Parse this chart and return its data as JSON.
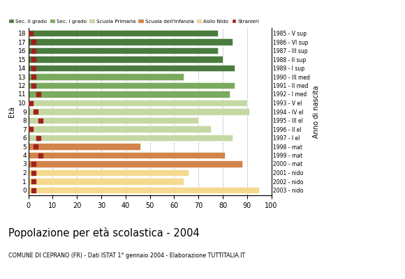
{
  "ages": [
    18,
    17,
    16,
    15,
    14,
    13,
    12,
    11,
    10,
    9,
    8,
    7,
    6,
    5,
    4,
    3,
    2,
    1,
    0
  ],
  "bar_values": [
    78,
    84,
    78,
    80,
    85,
    64,
    85,
    83,
    90,
    91,
    70,
    75,
    84,
    46,
    81,
    88,
    66,
    64,
    95
  ],
  "bar_colors": [
    "#4a7c3f",
    "#4a7c3f",
    "#4a7c3f",
    "#4a7c3f",
    "#4a7c3f",
    "#7aaa5e",
    "#7aaa5e",
    "#7aaa5e",
    "#c5d8a4",
    "#c5d8a4",
    "#c5d8a4",
    "#c5d8a4",
    "#c5d8a4",
    "#d2844a",
    "#d2844a",
    "#d2844a",
    "#f5d98e",
    "#f5d98e",
    "#f5d98e"
  ],
  "stranieri_values": [
    1,
    2,
    2,
    2,
    2,
    2,
    2,
    4,
    1,
    3,
    5,
    1,
    4,
    3,
    5,
    2,
    2,
    2,
    2
  ],
  "right_labels": [
    "1985 - V sup",
    "1986 - VI sup",
    "1987 - III sup",
    "1988 - II sup",
    "1989 - I sup",
    "1990 - III med",
    "1991 - II med",
    "1992 - I med",
    "1993 - V el",
    "1994 - IV el",
    "1995 - III el",
    "1996 - II el",
    "1997 - I el",
    "1998 - mat",
    "1999 - mat",
    "2000 - mat",
    "2001 - nido",
    "2002 - nido",
    "2003 - nido"
  ],
  "legend_labels": [
    "Sec. II grado",
    "Sec. I grado",
    "Scuola Primaria",
    "Scuola dell'Infanzia",
    "Asilo Nido",
    "Stranieri"
  ],
  "legend_colors": [
    "#4a7c3f",
    "#7aaa5e",
    "#c5d8a4",
    "#d2844a",
    "#f5d98e",
    "#a02020"
  ],
  "title": "Popolazione per età scolastica - 2004",
  "subtitle": "COMUNE DI CEPRANO (FR) - Dati ISTAT 1° gennaio 2004 - Elaborazione TUTTITALIA.IT",
  "ylabel_left": "Età",
  "ylabel_right": "Anno di nascita",
  "xlim": [
    0,
    100
  ],
  "stranieri_color": "#a02020",
  "background_color": "#ffffff",
  "bar_height": 0.78,
  "grid_color": "#aaaaaa"
}
